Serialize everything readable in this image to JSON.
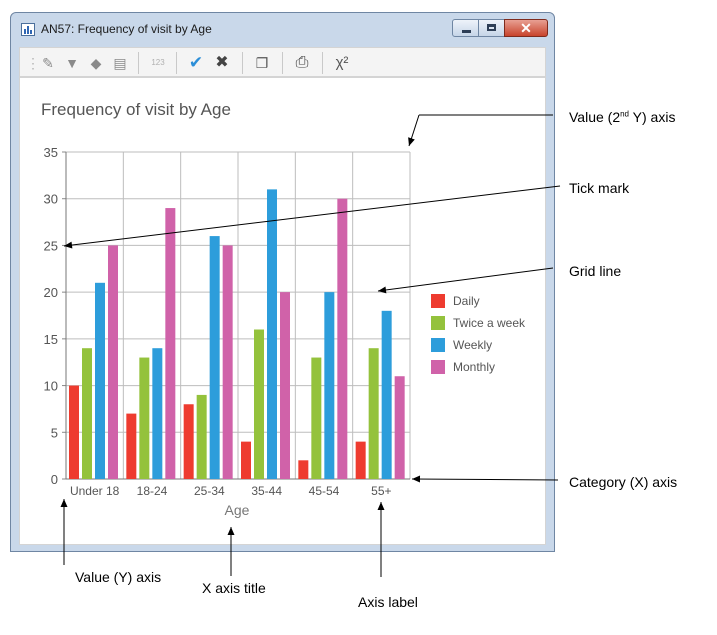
{
  "window": {
    "title": "AN57: Frequency of visit by Age"
  },
  "toolbar": {
    "icons": [
      "edit-icon",
      "filter-icon",
      "paint-bucket-icon",
      "document-icon",
      "number-format-icon",
      "check-icon",
      "cross-icon",
      "copy-icon",
      "print-icon",
      "chi-square-icon"
    ],
    "number_label": "123",
    "chi_label": "χ²"
  },
  "chart_data": {
    "type": "bar",
    "title": "Frequency of visit by Age",
    "xlabel": "Age",
    "ylabel": "",
    "categories": [
      "Under 18",
      "18-24",
      "25-34",
      "35-44",
      "45-54",
      "55+"
    ],
    "series": [
      {
        "name": "Daily",
        "color": "#ee3b2f",
        "values": [
          10,
          7,
          8,
          4,
          2,
          4
        ]
      },
      {
        "name": "Twice a week",
        "color": "#94c23c",
        "values": [
          14,
          13,
          9,
          16,
          13,
          14
        ]
      },
      {
        "name": "Weekly",
        "color": "#2d9ddb",
        "values": [
          21,
          14,
          26,
          31,
          20,
          18
        ]
      },
      {
        "name": "Monthly",
        "color": "#d062a9",
        "values": [
          25,
          29,
          25,
          20,
          30,
          11
        ]
      }
    ],
    "ylim": [
      0,
      35
    ],
    "yticks": [
      0,
      5,
      10,
      15,
      20,
      25,
      30,
      35
    ],
    "grid": true,
    "legend": "right"
  },
  "annotations": {
    "value_2nd_y_axis_pre": "Value (2",
    "value_2nd_y_axis_sup": "nd",
    "value_2nd_y_axis_post": " Y) axis",
    "tick_mark": "Tick mark",
    "grid_line": "Grid line",
    "category_x_axis": "Category (X) axis",
    "value_y_axis": "Value (Y) axis",
    "x_axis_title": "X axis title",
    "axis_label": "Axis label"
  }
}
